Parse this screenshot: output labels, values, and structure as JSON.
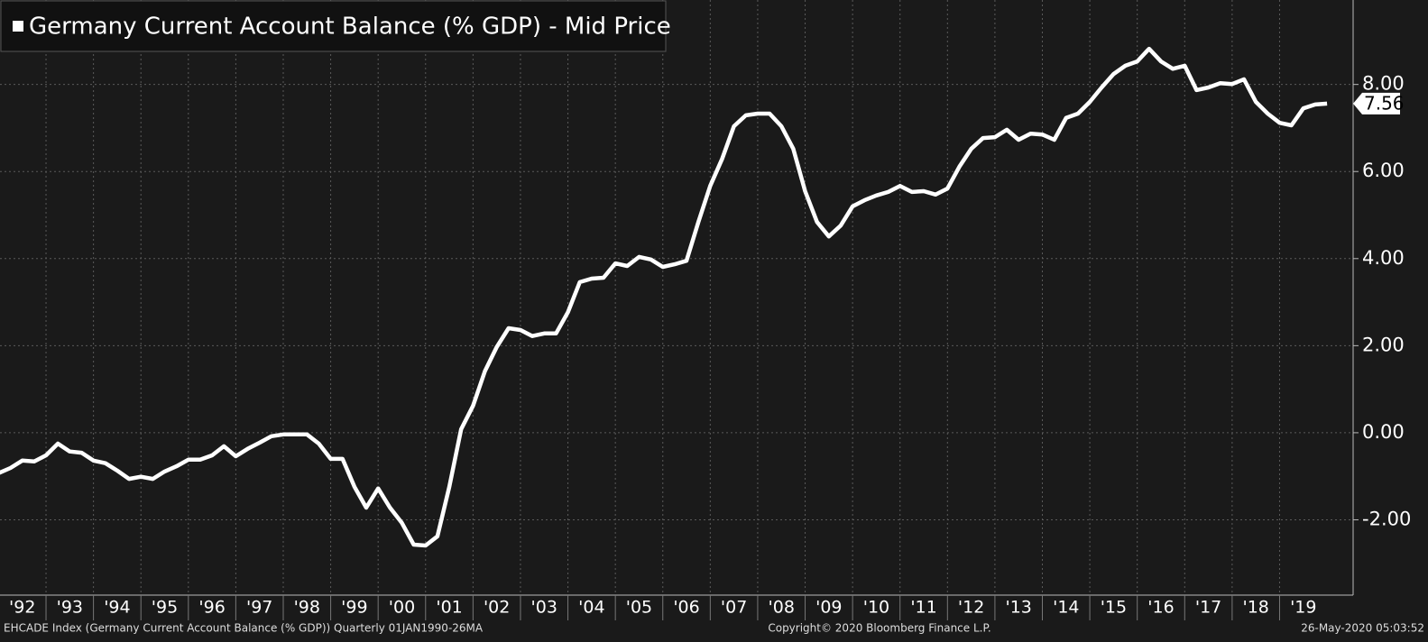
{
  "chart_data": {
    "type": "line",
    "series": [
      {
        "name": "Germany Current Account Balance (% GDP) - Mid Price",
        "color": "#ffffff",
        "values": [
          -0.93,
          -0.81,
          -0.64,
          -0.66,
          -0.52,
          -0.25,
          -0.43,
          -0.46,
          -0.64,
          -0.7,
          -0.87,
          -1.06,
          -1.01,
          -1.06,
          -0.89,
          -0.77,
          -0.62,
          -0.62,
          -0.52,
          -0.31,
          -0.54,
          -0.37,
          -0.23,
          -0.08,
          -0.04,
          -0.04,
          -0.04,
          -0.25,
          -0.6,
          -0.6,
          -1.24,
          -1.72,
          -1.28,
          -1.72,
          -2.07,
          -2.57,
          -2.59,
          -2.38,
          -1.24,
          0.08,
          0.62,
          1.41,
          1.97,
          2.4,
          2.36,
          2.22,
          2.28,
          2.28,
          2.77,
          3.46,
          3.54,
          3.56,
          3.89,
          3.83,
          4.04,
          3.98,
          3.81,
          3.87,
          3.95,
          4.84,
          5.67,
          6.29,
          7.04,
          7.29,
          7.33,
          7.33,
          7.04,
          6.52,
          5.55,
          4.84,
          4.51,
          4.76,
          5.2,
          5.34,
          5.45,
          5.53,
          5.67,
          5.53,
          5.55,
          5.47,
          5.61,
          6.11,
          6.52,
          6.77,
          6.79,
          6.96,
          6.73,
          6.87,
          6.85,
          6.73,
          7.23,
          7.33,
          7.6,
          7.93,
          8.24,
          8.43,
          8.53,
          8.82,
          8.53,
          8.36,
          8.43,
          7.87,
          7.93,
          8.03,
          8.01,
          8.12,
          7.6,
          7.33,
          7.12,
          7.06,
          7.45,
          7.54,
          7.56
        ]
      }
    ],
    "x_start": 1992,
    "x_step": 0.25,
    "xlim": [
      1992.03,
      2020.55
    ],
    "xticks": [
      {
        "value": 1992,
        "label": "'92"
      },
      {
        "value": 1993,
        "label": "'93"
      },
      {
        "value": 1994,
        "label": "'94"
      },
      {
        "value": 1995,
        "label": "'95"
      },
      {
        "value": 1996,
        "label": "'96"
      },
      {
        "value": 1997,
        "label": "'97"
      },
      {
        "value": 1998,
        "label": "'98"
      },
      {
        "value": 1999,
        "label": "'99"
      },
      {
        "value": 2000,
        "label": "'00"
      },
      {
        "value": 2001,
        "label": "'01"
      },
      {
        "value": 2002,
        "label": "'02"
      },
      {
        "value": 2003,
        "label": "'03"
      },
      {
        "value": 2004,
        "label": "'04"
      },
      {
        "value": 2005,
        "label": "'05"
      },
      {
        "value": 2006,
        "label": "'06"
      },
      {
        "value": 2007,
        "label": "'07"
      },
      {
        "value": 2008,
        "label": "'08"
      },
      {
        "value": 2009,
        "label": "'09"
      },
      {
        "value": 2010,
        "label": "'10"
      },
      {
        "value": 2011,
        "label": "'11"
      },
      {
        "value": 2012,
        "label": "'12"
      },
      {
        "value": 2013,
        "label": "'13"
      },
      {
        "value": 2014,
        "label": "'14"
      },
      {
        "value": 2015,
        "label": "'15"
      },
      {
        "value": 2016,
        "label": "'16"
      },
      {
        "value": 2017,
        "label": "'17"
      },
      {
        "value": 2018,
        "label": "'18"
      },
      {
        "value": 2019,
        "label": "'19"
      }
    ],
    "ylim": [
      -3.73,
      9.94
    ],
    "yticks": [
      {
        "value": -2,
        "label": "-2.00"
      },
      {
        "value": 0,
        "label": "0.00"
      },
      {
        "value": 2,
        "label": "2.00"
      },
      {
        "value": 4,
        "label": "4.00"
      },
      {
        "value": 6,
        "label": "6.00"
      },
      {
        "value": 8,
        "label": "8.00"
      }
    ],
    "grid": true,
    "legend": "top-left"
  },
  "footer": {
    "left": "EHCADE Index (Germany Current Account Balance (% GDP))  Quarterly 01JAN1990-26MA",
    "center": "Copyright© 2020 Bloomberg Finance L.P.",
    "right": "26-May-2020 05:03:52"
  }
}
